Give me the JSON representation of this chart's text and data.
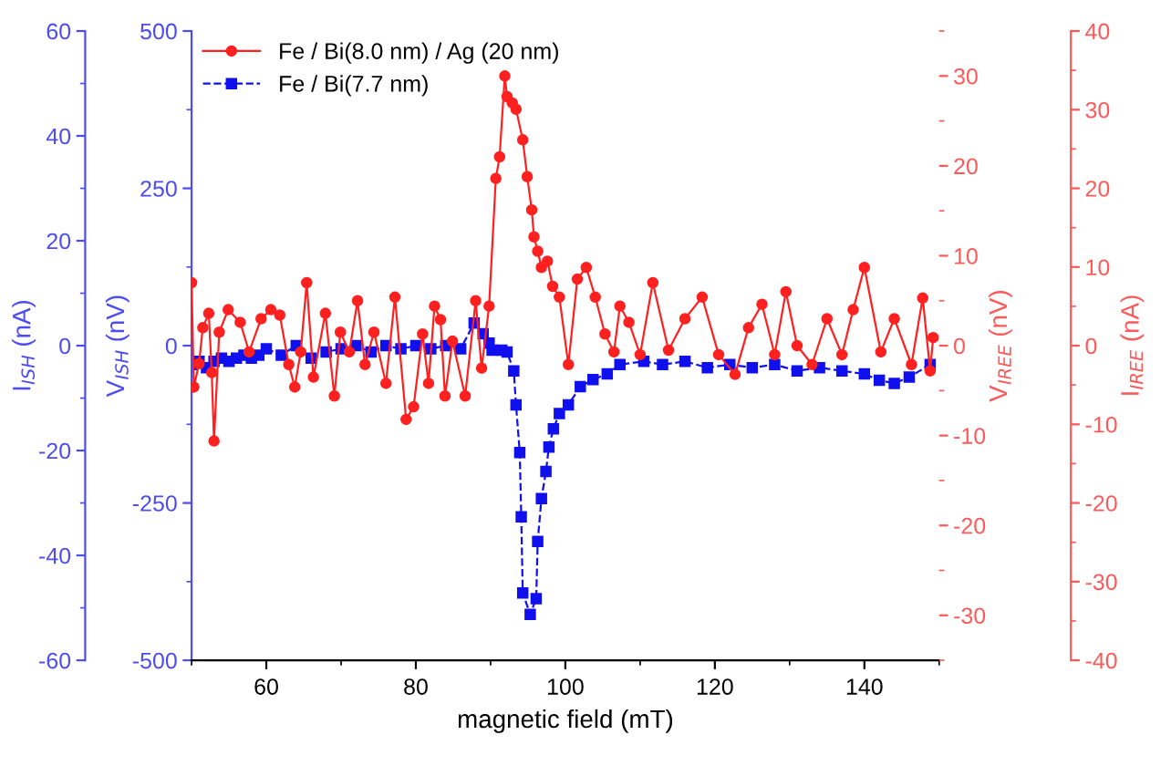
{
  "chart_data": [
    {
      "type": "line",
      "xlabel": "magnetic field (mT)",
      "ylabel": "V$_{ISH}$ (nV)",
      "y2label": "I$_{ISH}$ (nA)",
      "xlim": [
        50,
        150
      ],
      "xticks": [
        60,
        80,
        100,
        120,
        140
      ],
      "ylim": [
        -500,
        500
      ],
      "yticks": [
        -500,
        -250,
        0,
        250,
        500
      ],
      "y2lim": [
        -60,
        60
      ],
      "y2ticks": [
        -60,
        -40,
        -20,
        0,
        20,
        40,
        60
      ],
      "grid": false,
      "legend": "top left",
      "series": [
        {
          "name": "Fe / Bi(7.7 nm)",
          "color": "#1010ee",
          "marker": "square",
          "line_style": "dashed",
          "x": [
            50,
            51,
            52,
            53,
            54,
            55,
            56,
            57,
            58,
            59,
            60,
            62,
            64,
            66,
            68,
            70,
            72,
            74,
            76,
            78,
            80,
            82,
            84,
            86,
            87.8,
            89,
            89.8,
            90.2,
            91.5,
            92.2,
            93.1,
            93.4,
            93.9,
            94.1,
            94.3,
            95.3,
            96.1,
            96.3,
            96.8,
            97.4,
            97.8,
            98.4,
            99.2,
            100.4,
            102,
            103.7,
            105.6,
            107.3,
            110.5,
            113,
            116,
            119,
            122,
            125,
            128,
            131,
            134,
            137,
            140,
            142,
            144,
            146,
            148.8
          ],
          "values": [
            -30,
            -25,
            -35,
            -25,
            -20,
            -25,
            -20,
            -15,
            -20,
            -15,
            -5,
            -15,
            0,
            -20,
            -10,
            -5,
            0,
            -10,
            0,
            -5,
            0,
            -5,
            0,
            -5,
            36,
            19,
            4,
            -7,
            -7,
            -10,
            -40,
            -94,
            -170,
            -272,
            -393,
            -427,
            -402,
            -311,
            -243,
            -200,
            -161,
            -132,
            -108,
            -94,
            -65,
            -54,
            -45,
            -30,
            -25,
            -30,
            -25,
            -35,
            -30,
            -35,
            -30,
            -40,
            -35,
            -40,
            -45,
            -55,
            -60,
            -50,
            -30
          ]
        }
      ]
    },
    {
      "type": "line",
      "tick_labels": "y",
      "ylabel": "V$_{IREE}$ (nV)",
      "y2label": "I$_{IREE}$ (nA)",
      "xlim": [
        50,
        150
      ],
      "ylim": [
        -35,
        35
      ],
      "yticks": [
        -30,
        -20,
        -10,
        0,
        10,
        20,
        30
      ],
      "y2lim": [
        -40,
        40
      ],
      "y2ticks": [
        -40,
        -30,
        -20,
        -10,
        0,
        10,
        20,
        30,
        40
      ],
      "grid": false,
      "legend": "top left",
      "series": [
        {
          "name": "Fe / Bi(8.0 nm) / Ag (20 nm)",
          "color": "#ff2020",
          "marker": "circle",
          "line_style": "solid",
          "x": [
            50,
            50.3,
            51,
            51.5,
            52.3,
            52.7,
            53,
            53.7,
            54.9,
            56.5,
            57.7,
            59.3,
            60.6,
            61.8,
            63,
            63.8,
            64.6,
            65.4,
            66.3,
            67.9,
            69.1,
            69.9,
            71.1,
            72.2,
            73.2,
            74.4,
            76,
            77.2,
            78.7,
            79.7,
            80.9,
            81.7,
            82.5,
            83.3,
            83.9,
            84.9,
            86.6,
            88,
            88.8,
            89.8,
            90.7,
            91.2,
            91.9,
            92.2,
            92.9,
            93.4,
            94.3,
            94.9,
            95.5,
            95.8,
            96.3,
            96.8,
            97.6,
            98.3,
            99.2,
            100.4,
            101.6,
            102.8,
            104,
            105.3,
            106.5,
            107.3,
            108.5,
            110,
            111.7,
            113.8,
            116,
            118.3,
            120.5,
            122.7,
            124.5,
            126.3,
            128,
            129.5,
            131,
            133,
            135,
            137,
            138.5,
            140,
            142.2,
            144,
            146.3,
            147.8,
            148.8,
            149.2
          ],
          "values": [
            7,
            -4.6,
            -2,
            2,
            3.6,
            -3,
            -10.6,
            1.5,
            4,
            2.6,
            -0.7,
            3,
            4,
            3.4,
            -2.1,
            -4.6,
            -0.7,
            7,
            -3.5,
            3.6,
            -5.6,
            1.5,
            -0.7,
            5,
            -2.1,
            1.5,
            -4.2,
            5.4,
            -8.2,
            -6.8,
            1.3,
            -4.2,
            4.4,
            2.9,
            -5.6,
            0.5,
            -5.6,
            5,
            -2.5,
            4.4,
            18.6,
            21,
            30,
            27.7,
            27,
            26.3,
            22.9,
            18.8,
            15.1,
            12.1,
            10.5,
            8.7,
            9.4,
            6.6,
            5.4,
            -2.1,
            7.4,
            8.7,
            5.4,
            1.3,
            -0.7,
            4.4,
            2.6,
            -1,
            7,
            -0.5,
            3,
            5.4,
            -1,
            -3.2,
            2,
            4.6,
            -1,
            6,
            0,
            -2.1,
            3,
            -1,
            4,
            8.7,
            -0.7,
            3,
            -2.1,
            5.3,
            -2.8,
            0.9
          ]
        }
      ]
    }
  ]
}
